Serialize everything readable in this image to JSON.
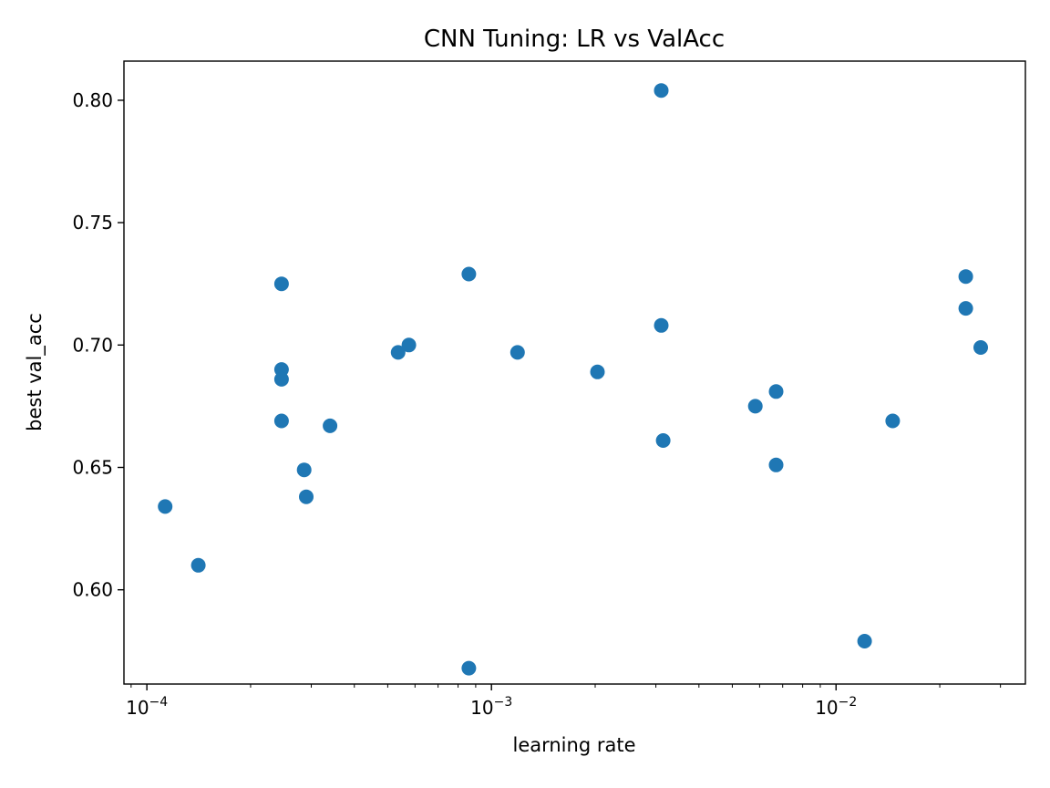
{
  "chart_data": {
    "type": "scatter",
    "title": "CNN Tuning: LR vs ValAcc",
    "xlabel": "learning rate",
    "ylabel": "best val_acc",
    "xscale": "log",
    "xlim": [
      8.58e-05,
      0.03544
    ],
    "ylim": [
      0.5615,
      0.816
    ],
    "grid": false,
    "marker_color": "#1f77b4",
    "x_ticks": [
      {
        "value": 0.0001,
        "base": "10",
        "exp": "−4"
      },
      {
        "value": 0.001,
        "base": "10",
        "exp": "−3"
      },
      {
        "value": 0.01,
        "base": "10",
        "exp": "−2"
      }
    ],
    "y_ticks": [
      {
        "value": 0.6,
        "label": "0.60"
      },
      {
        "value": 0.65,
        "label": "0.65"
      },
      {
        "value": 0.7,
        "label": "0.70"
      },
      {
        "value": 0.75,
        "label": "0.75"
      },
      {
        "value": 0.8,
        "label": "0.80"
      }
    ],
    "points": [
      {
        "x": 0.000113,
        "y": 0.634
      },
      {
        "x": 0.000141,
        "y": 0.61
      },
      {
        "x": 0.000246,
        "y": 0.725
      },
      {
        "x": 0.000246,
        "y": 0.69
      },
      {
        "x": 0.000246,
        "y": 0.686
      },
      {
        "x": 0.000246,
        "y": 0.669
      },
      {
        "x": 0.000286,
        "y": 0.649
      },
      {
        "x": 0.00029,
        "y": 0.638
      },
      {
        "x": 0.00034,
        "y": 0.667
      },
      {
        "x": 0.000536,
        "y": 0.697
      },
      {
        "x": 0.000576,
        "y": 0.7
      },
      {
        "x": 0.00086,
        "y": 0.729
      },
      {
        "x": 0.00086,
        "y": 0.568
      },
      {
        "x": 0.00119,
        "y": 0.697
      },
      {
        "x": 0.00203,
        "y": 0.689
      },
      {
        "x": 0.00311,
        "y": 0.804
      },
      {
        "x": 0.00311,
        "y": 0.708
      },
      {
        "x": 0.00315,
        "y": 0.661
      },
      {
        "x": 0.00583,
        "y": 0.675
      },
      {
        "x": 0.0067,
        "y": 0.681
      },
      {
        "x": 0.0067,
        "y": 0.651
      },
      {
        "x": 0.0121,
        "y": 0.579
      },
      {
        "x": 0.0146,
        "y": 0.669
      },
      {
        "x": 0.0238,
        "y": 0.728
      },
      {
        "x": 0.0238,
        "y": 0.715
      },
      {
        "x": 0.0263,
        "y": 0.699
      }
    ]
  }
}
